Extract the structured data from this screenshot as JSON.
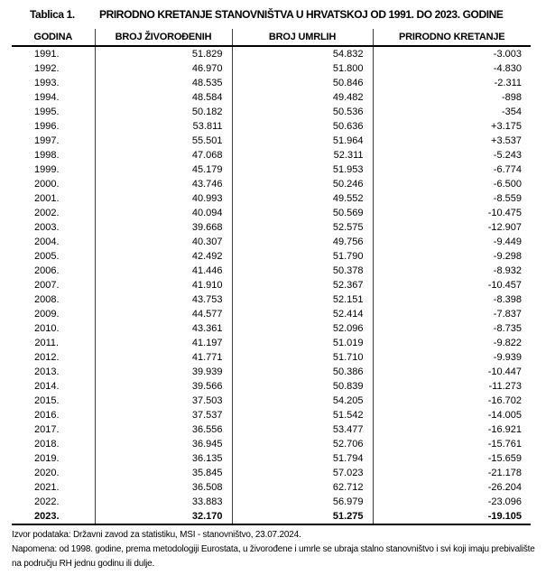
{
  "title": {
    "label": "Tablica 1.",
    "text": "PRIRODNO KRETANJE STANOVNIŠTVA U HRVATSKOJ OD 1991. DO 2023. GODINE"
  },
  "table": {
    "columns": [
      "GODINA",
      "BROJ ŽIVOROĐENIH",
      "BROJ UMRLIH",
      "PRIRODNO KRETANJE"
    ],
    "rows": [
      [
        "1991.",
        "51.829",
        "54.832",
        "-3.003"
      ],
      [
        "1992.",
        "46.970",
        "51.800",
        "-4.830"
      ],
      [
        "1993.",
        "48.535",
        "50.846",
        "-2.311"
      ],
      [
        "1994.",
        "48.584",
        "49.482",
        "-898"
      ],
      [
        "1995.",
        "50.182",
        "50.536",
        "-354"
      ],
      [
        "1996.",
        "53.811",
        "50.636",
        "+3.175"
      ],
      [
        "1997.",
        "55.501",
        "51.964",
        "+3.537"
      ],
      [
        "1998.",
        "47.068",
        "52.311",
        "-5.243"
      ],
      [
        "1999.",
        "45.179",
        "51.953",
        "-6.774"
      ],
      [
        "2000.",
        "43.746",
        "50.246",
        "-6.500"
      ],
      [
        "2001.",
        "40.993",
        "49.552",
        "-8.559"
      ],
      [
        "2002.",
        "40.094",
        "50.569",
        "-10.475"
      ],
      [
        "2003.",
        "39.668",
        "52.575",
        "-12.907"
      ],
      [
        "2004.",
        "40.307",
        "49.756",
        "-9.449"
      ],
      [
        "2005.",
        "42.492",
        "51.790",
        "-9.298"
      ],
      [
        "2006.",
        "41.446",
        "50.378",
        "-8.932"
      ],
      [
        "2007.",
        "41.910",
        "52.367",
        "-10.457"
      ],
      [
        "2008.",
        "43.753",
        "52.151",
        "-8.398"
      ],
      [
        "2009.",
        "44.577",
        "52.414",
        "-7.837"
      ],
      [
        "2010.",
        "43.361",
        "52.096",
        "-8.735"
      ],
      [
        "2011.",
        "41.197",
        "51.019",
        "-9.822"
      ],
      [
        "2012.",
        "41.771",
        "51.710",
        "-9.939"
      ],
      [
        "2013.",
        "39.939",
        "50.386",
        "-10.447"
      ],
      [
        "2014.",
        "39.566",
        "50.839",
        "-11.273"
      ],
      [
        "2015.",
        "37.503",
        "54.205",
        "-16.702"
      ],
      [
        "2016.",
        "37.537",
        "51.542",
        "-14.005"
      ],
      [
        "2017.",
        "36.556",
        "53.477",
        "-16.921"
      ],
      [
        "2018.",
        "36.945",
        "52.706",
        "-15.761"
      ],
      [
        "2019.",
        "36.135",
        "51.794",
        "-15.659"
      ],
      [
        "2020.",
        "35.845",
        "57.023",
        "-21.178"
      ],
      [
        "2021.",
        "36.508",
        "62.712",
        "-26.204"
      ],
      [
        "2022.",
        "33.883",
        "56.979",
        "-23.096"
      ],
      [
        "2023.",
        "32.170",
        "51.275",
        "-19.105"
      ]
    ],
    "last_row_bold": true
  },
  "footnotes": {
    "source": "Izvor podataka: Državni zavod za statistiku, MSI - stanovništvo, 23.07.2024.",
    "note": "Napomena: od 1998. godine, prema metodologiji Eurostata, u živorođene i umrle se ubraja stalno stanovništvo i svi koji imaju prebivalište na području RH jednu godinu ili dulje."
  }
}
